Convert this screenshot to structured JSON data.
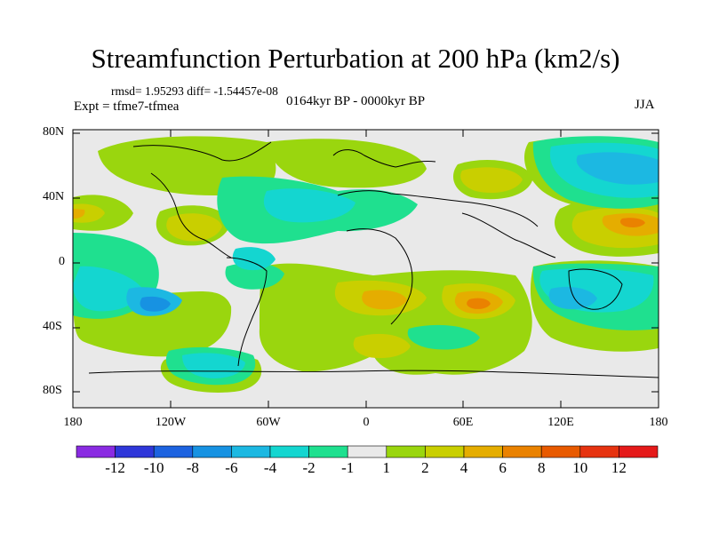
{
  "title": "Streamfunction Perturbation at 200 hPa (km2/s)",
  "stats": "rmsd= 1.95293 diff= -1.54457e-08",
  "expt": "Expt = tfme7-tfmea",
  "period": "0164kyr BP - 0000kyr BP",
  "season": "JJA",
  "axes": {
    "lat_ticks": [
      "80N",
      "40N",
      "0",
      "40S",
      "80S"
    ],
    "lon_ticks": [
      "180",
      "120W",
      "60W",
      "0",
      "60E",
      "120E",
      "180"
    ]
  },
  "colorbar": {
    "labels": [
      "-12",
      "-10",
      "-8",
      "-6",
      "-4",
      "-2",
      "-1",
      "1",
      "2",
      "4",
      "6",
      "8",
      "10",
      "12"
    ],
    "colors": [
      "#8a2be2",
      "#2f37d9",
      "#1d63e0",
      "#1792e2",
      "#1cb8e2",
      "#14d6d0",
      "#1fe08f",
      "#e9e9e9",
      "#9ad60e",
      "#c9cf00",
      "#e5ad00",
      "#ea8200",
      "#e85a00",
      "#e63310",
      "#e51a1a"
    ],
    "background_color": "#e9e9e9"
  }
}
